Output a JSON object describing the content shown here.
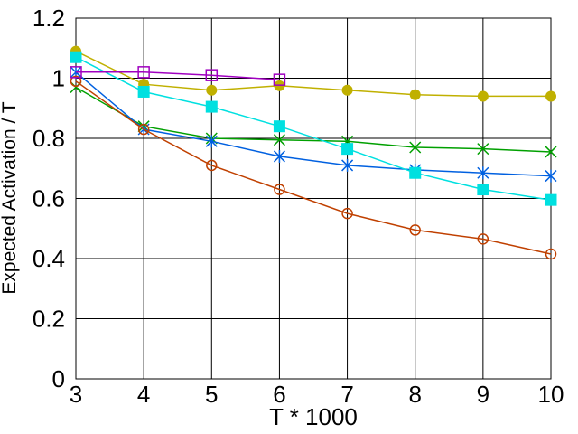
{
  "chart_data": {
    "type": "line",
    "title": "",
    "xlabel": "T * 1000",
    "ylabel": "Expected Activation / T",
    "xlim": [
      3,
      10
    ],
    "ylim": [
      0,
      1.2
    ],
    "xticks": [
      "3",
      "4",
      "5",
      "6",
      "7",
      "8",
      "9",
      "10"
    ],
    "yticks": [
      "0",
      "0.2",
      "0.4",
      "0.6",
      "0.8",
      "1",
      "1.2"
    ],
    "grid": true,
    "legend": "none",
    "series": [
      {
        "color": "#c0b000",
        "marker": "filled-circle",
        "x": [
          3,
          4,
          5,
          6,
          7,
          8,
          9,
          10
        ],
        "y": [
          1.09,
          0.98,
          0.96,
          0.975,
          0.96,
          0.945,
          0.94,
          0.94
        ]
      },
      {
        "color": "#00a000",
        "marker": "x",
        "x": [
          3,
          4,
          5,
          6,
          7,
          8,
          9,
          10
        ],
        "y": [
          0.97,
          0.84,
          0.8,
          0.795,
          0.79,
          0.77,
          0.765,
          0.755
        ]
      },
      {
        "color": "#0060e0",
        "marker": "asterisk",
        "x": [
          3,
          4,
          5,
          6,
          7,
          8,
          9,
          10
        ],
        "y": [
          1.02,
          0.83,
          0.79,
          0.74,
          0.71,
          0.695,
          0.685,
          0.675
        ]
      },
      {
        "color": "#00e0e0",
        "marker": "filled-square",
        "x": [
          3,
          4,
          5,
          6,
          7,
          8,
          9,
          10
        ],
        "y": [
          1.07,
          0.955,
          0.905,
          0.84,
          0.765,
          0.685,
          0.63,
          0.595
        ]
      },
      {
        "color": "#c04000",
        "marker": "open-circle",
        "x": [
          3,
          4,
          5,
          6,
          7,
          8,
          9,
          10
        ],
        "y": [
          0.99,
          0.83,
          0.71,
          0.63,
          0.55,
          0.495,
          0.465,
          0.415
        ]
      },
      {
        "color": "#a000c0",
        "marker": "open-square",
        "x": [
          3,
          4,
          5,
          6
        ],
        "y": [
          1.02,
          1.02,
          1.01,
          0.995
        ]
      }
    ]
  }
}
